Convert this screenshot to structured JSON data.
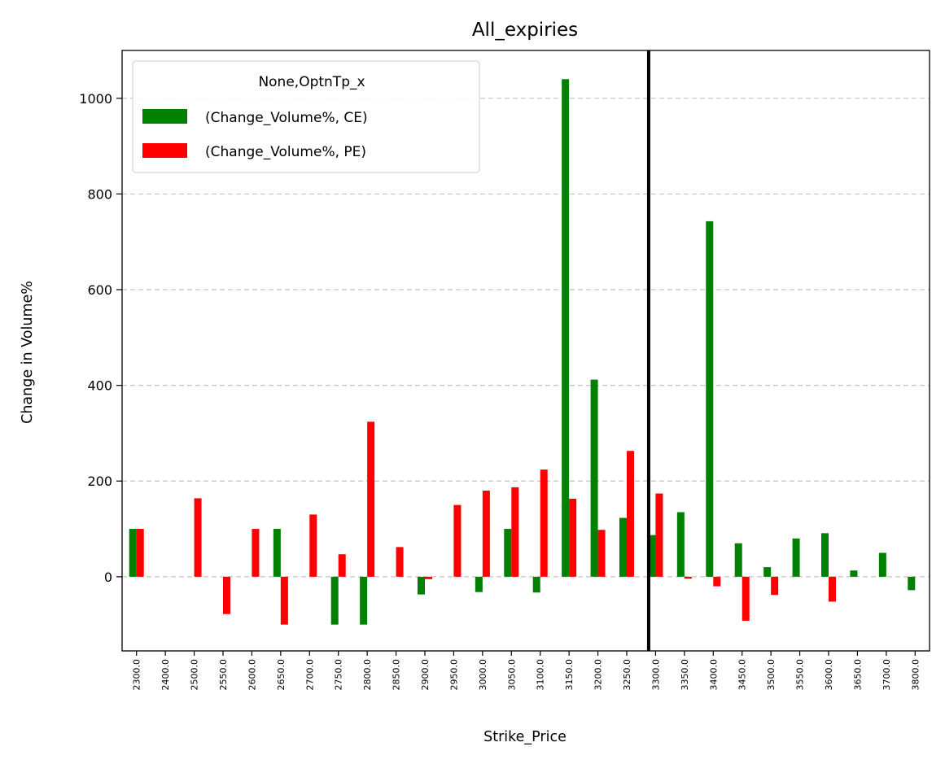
{
  "chart_data": {
    "type": "bar",
    "title": "All_expiries",
    "xlabel": "Strike_Price",
    "ylabel": "Change in Volume%",
    "ylim": [
      -155,
      1100
    ],
    "yticks": [
      0,
      200,
      400,
      600,
      800,
      1000
    ],
    "grid": "y-dashed",
    "legend_position": "top-left",
    "legend_title": "None,OptnTp_x",
    "categories": [
      "2300.0",
      "2400.0",
      "2500.0",
      "2550.0",
      "2600.0",
      "2650.0",
      "2700.0",
      "2750.0",
      "2800.0",
      "2850.0",
      "2900.0",
      "2950.0",
      "3000.0",
      "3050.0",
      "3100.0",
      "3150.0",
      "3200.0",
      "3250.0",
      "3300.0",
      "3350.0",
      "3400.0",
      "3450.0",
      "3500.0",
      "3550.0",
      "3600.0",
      "3650.0",
      "3700.0",
      "3800.0"
    ],
    "series": [
      {
        "name": "(Change_Volume%, CE)",
        "color": "#008000",
        "values": [
          100,
          0,
          0,
          0,
          0,
          100,
          0,
          -100,
          -100,
          0,
          -37,
          0,
          -32,
          100,
          -33,
          1040,
          412,
          123,
          87,
          135,
          743,
          70,
          20,
          80,
          91,
          13,
          50,
          -28
        ]
      },
      {
        "name": "(Change_Volume%, PE)",
        "color": "#ff0000",
        "values": [
          100,
          0,
          164,
          -78,
          100,
          -100,
          130,
          47,
          324,
          62,
          -5,
          150,
          180,
          187,
          224,
          163,
          98,
          263,
          174,
          -4,
          -20,
          -92,
          -38,
          0,
          -52,
          0,
          0,
          0
        ]
      }
    ],
    "vline": {
      "category": "3300.0",
      "color": "#000000"
    }
  }
}
